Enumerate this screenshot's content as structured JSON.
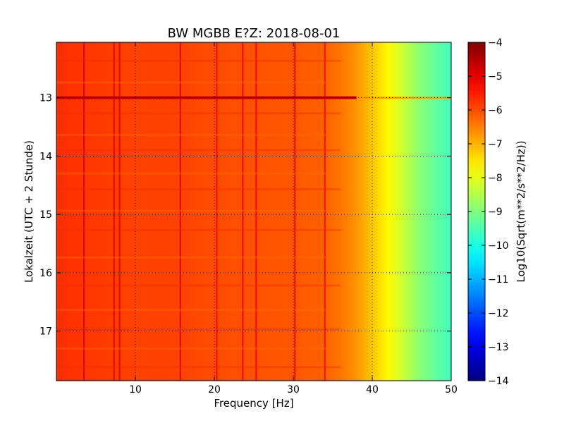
{
  "chart_data": {
    "type": "heatmap",
    "title": "BW MGBB E?Z: 2018-08-01",
    "xlabel": "Frequency [Hz]",
    "ylabel": "Lokalzeit (UTC + 2 Stunde)",
    "xlim": [
      0,
      50
    ],
    "ylim": [
      12.05,
      17.85
    ],
    "y_inverted": true,
    "x_ticks": [
      10,
      20,
      30,
      40,
      50
    ],
    "y_ticks": [
      13,
      14,
      15,
      16,
      17
    ],
    "grid": true,
    "colormap": "jet",
    "colorbar": {
      "label": "Log10(Sqrt(m**2/s**2/Hz))",
      "range": [
        -14,
        -4
      ],
      "ticks": [
        -4,
        -5,
        -6,
        -7,
        -8,
        -9,
        -10,
        -11,
        -12,
        -13,
        -14
      ]
    },
    "spectral_profile": {
      "frequency_hz": [
        0,
        5,
        10,
        15,
        20,
        25,
        30,
        34,
        36,
        38,
        40,
        42,
        44,
        46,
        48,
        50
      ],
      "level_log10": [
        -5.7,
        -5.8,
        -5.9,
        -5.9,
        -6.0,
        -6.05,
        -6.1,
        -6.2,
        -6.4,
        -6.7,
        -7.2,
        -7.7,
        -8.3,
        -8.9,
        -9.3,
        -9.6
      ]
    },
    "spectral_lines_hz": [
      3.5,
      7.3,
      8.0,
      15.7,
      20.3,
      23.6,
      25.3,
      30.2,
      34.0
    ],
    "strong_event": {
      "time_h": 13.0,
      "level_log10": -4.5
    }
  }
}
